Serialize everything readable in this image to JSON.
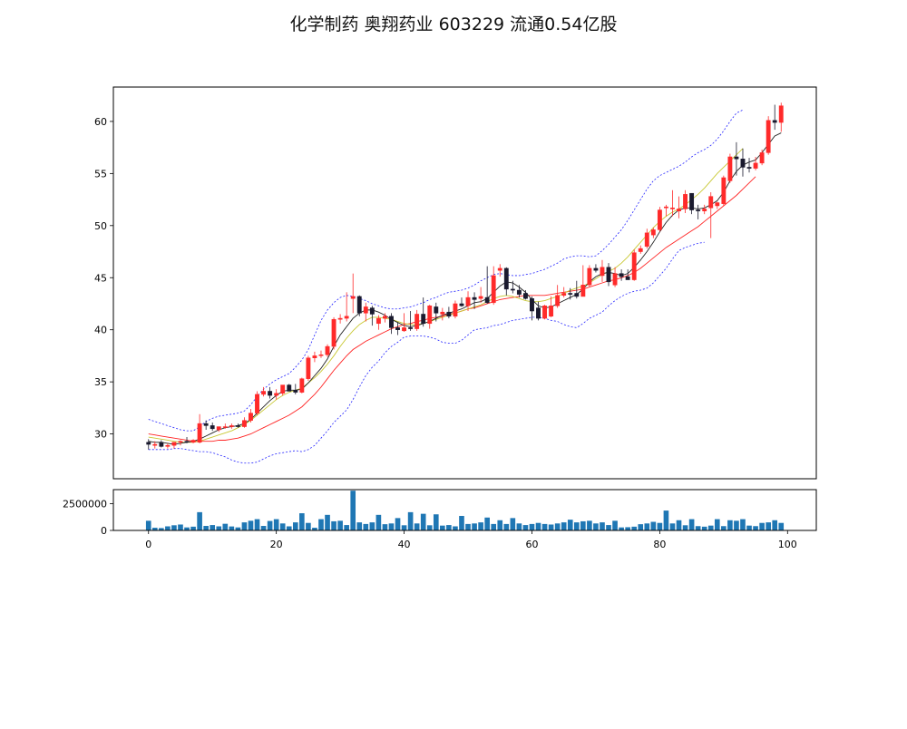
{
  "title": "化学制药 奥翔药业 603229 流通0.54亿股",
  "colors": {
    "up": "#ff2a2a",
    "down": "#1a1a2e",
    "ma_short": "#222222",
    "ma_mid": "#c8c832",
    "ma_long": "#ff2222",
    "bollinger": "#2323ff",
    "volume": "#1f77b4"
  },
  "chart_data": [
    {
      "type": "candlestick",
      "xlim": [
        -5.5,
        104.5
      ],
      "ylim": [
        25.7,
        63.3
      ],
      "yticks": [
        30,
        35,
        40,
        45,
        50,
        55,
        60
      ],
      "ytick_labels": [
        "30",
        "35",
        "40",
        "45",
        "50",
        "55",
        "60"
      ],
      "grid": false,
      "x": [
        0,
        1,
        2,
        3,
        4,
        5,
        6,
        7,
        8,
        9,
        10,
        11,
        12,
        13,
        14,
        15,
        16,
        17,
        18,
        19,
        20,
        21,
        22,
        23,
        24,
        25,
        26,
        27,
        28,
        29,
        30,
        31,
        32,
        33,
        34,
        35,
        36,
        37,
        38,
        39,
        40,
        41,
        42,
        43,
        44,
        45,
        46,
        47,
        48,
        49,
        50,
        51,
        52,
        53,
        54,
        55,
        56,
        57,
        58,
        59,
        60,
        61,
        62,
        63,
        64,
        65,
        66,
        67,
        68,
        69,
        70,
        71,
        72,
        73,
        74,
        75,
        76,
        77,
        78,
        79,
        80,
        81,
        82,
        83,
        84,
        85,
        86,
        87,
        88,
        89,
        90,
        91,
        92,
        93,
        94,
        95,
        96,
        97,
        98,
        99
      ],
      "open": [
        29.2,
        28.9,
        29.2,
        28.8,
        28.9,
        29.2,
        29.3,
        29.2,
        29.2,
        31.0,
        30.8,
        30.4,
        30.7,
        30.7,
        30.8,
        30.7,
        31.3,
        32.0,
        33.8,
        34.1,
        33.7,
        33.9,
        34.7,
        34.2,
        34.0,
        35.3,
        37.3,
        37.6,
        37.6,
        38.4,
        41.0,
        41.1,
        43.0,
        43.2,
        41.6,
        42.1,
        40.6,
        41.1,
        41.3,
        40.2,
        39.9,
        40.2,
        40.1,
        41.5,
        40.6,
        42.2,
        41.5,
        41.7,
        41.3,
        42.5,
        42.3,
        43.1,
        43.0,
        43.1,
        42.6,
        45.7,
        45.9,
        43.9,
        43.8,
        43.5,
        43.0,
        42.1,
        41.1,
        41.3,
        42.3,
        43.3,
        43.5,
        43.5,
        43.2,
        44.3,
        45.9,
        45.2,
        46.0,
        44.3,
        45.4,
        45.1,
        44.8,
        47.5,
        48.0,
        49.1,
        49.6,
        51.7,
        51.6,
        51.4,
        51.6,
        53.1,
        51.5,
        51.4,
        51.7,
        51.9,
        52.1,
        54.3,
        56.6,
        56.4,
        55.6,
        55.5,
        56.0,
        57.0,
        60.1,
        59.9
      ],
      "high": [
        29.5,
        29.3,
        29.4,
        29.1,
        29.2,
        29.4,
        29.7,
        29.5,
        31.9,
        31.3,
        31.1,
        30.7,
        31.0,
        31.0,
        31.0,
        31.6,
        32.4,
        34.1,
        34.5,
        34.5,
        34.3,
        34.5,
        34.8,
        34.8,
        35.4,
        37.5,
        37.9,
        38.0,
        38.6,
        41.2,
        41.5,
        43.6,
        45.4,
        43.3,
        42.6,
        42.3,
        41.4,
        41.6,
        41.6,
        40.7,
        41.6,
        41.8,
        41.9,
        43.1,
        42.4,
        42.6,
        42.1,
        42.2,
        42.8,
        43.1,
        43.7,
        43.6,
        44.1,
        46.1,
        46.1,
        46.3,
        46.0,
        44.7,
        44.3,
        43.8,
        43.2,
        42.7,
        42.4,
        43.2,
        44.3,
        44.1,
        44.0,
        44.7,
        46.2,
        46.2,
        46.3,
        46.7,
        46.4,
        46.0,
        45.8,
        45.8,
        47.7,
        48.1,
        49.7,
        49.8,
        51.8,
        52.0,
        53.4,
        52.8,
        53.4,
        53.1,
        52.0,
        52.0,
        53.2,
        52.3,
        54.8,
        56.9,
        58.0,
        57.4,
        56.5,
        56.6,
        57.3,
        60.5,
        61.6,
        61.8
      ],
      "low": [
        28.5,
        28.6,
        28.7,
        28.6,
        28.6,
        28.9,
        29.1,
        29.1,
        29.1,
        30.4,
        30.3,
        30.2,
        30.5,
        30.5,
        30.6,
        30.6,
        31.1,
        31.8,
        33.6,
        33.4,
        33.3,
        33.7,
        34.1,
        33.8,
        33.9,
        35.1,
        36.9,
        37.3,
        37.4,
        38.1,
        40.6,
        40.8,
        41.6,
        41.3,
        40.8,
        40.4,
        40.0,
        40.7,
        39.6,
        39.5,
        39.8,
        39.9,
        39.9,
        40.3,
        40.1,
        40.8,
        40.9,
        41.1,
        41.1,
        42.2,
        41.8,
        42.0,
        42.6,
        42.5,
        42.4,
        45.1,
        43.3,
        43.5,
        43.1,
        42.9,
        40.9,
        40.9,
        41.0,
        41.2,
        42.1,
        43.1,
        42.9,
        43.0,
        43.2,
        44.1,
        45.5,
        44.6,
        44.2,
        44.1,
        44.7,
        44.8,
        44.7,
        47.3,
        47.8,
        48.8,
        49.4,
        50.9,
        50.9,
        50.7,
        51.2,
        51.1,
        50.6,
        51.1,
        48.8,
        51.6,
        51.9,
        54.1,
        54.8,
        54.7,
        55.1,
        55.3,
        55.8,
        56.8,
        59.2,
        59.0
      ],
      "close": [
        29.0,
        29.0,
        28.8,
        28.9,
        29.2,
        29.3,
        29.2,
        29.4,
        31.0,
        30.8,
        30.5,
        30.7,
        30.7,
        30.8,
        30.7,
        31.3,
        32.0,
        33.8,
        34.1,
        33.7,
        33.9,
        34.7,
        34.1,
        34.0,
        35.3,
        37.3,
        37.5,
        37.6,
        38.4,
        41.0,
        41.1,
        41.3,
        43.2,
        41.6,
        42.2,
        41.5,
        41.1,
        41.3,
        40.2,
        40.0,
        40.2,
        40.1,
        41.5,
        40.6,
        42.3,
        41.6,
        41.7,
        41.3,
        42.5,
        42.3,
        43.1,
        42.9,
        43.2,
        42.6,
        45.2,
        45.9,
        43.9,
        43.8,
        43.4,
        43.0,
        41.8,
        41.1,
        42.3,
        42.3,
        43.3,
        43.5,
        43.4,
        43.2,
        44.3,
        45.9,
        45.7,
        46.0,
        44.6,
        45.4,
        45.1,
        44.8,
        47.4,
        47.8,
        49.3,
        49.6,
        51.5,
        51.8,
        51.7,
        51.6,
        53.0,
        51.5,
        51.4,
        51.6,
        52.8,
        52.2,
        54.6,
        56.6,
        56.4,
        55.6,
        55.5,
        56.0,
        57.0,
        60.1,
        59.9,
        61.5
      ],
      "ma_short": [
        29.3,
        29.2,
        29.2,
        29.1,
        29.0,
        29.1,
        29.2,
        29.3,
        29.5,
        29.8,
        30.1,
        30.4,
        30.6,
        30.7,
        30.8,
        31.0,
        31.4,
        32.0,
        32.6,
        33.2,
        33.7,
        34.1,
        34.2,
        34.2,
        34.3,
        34.9,
        35.6,
        36.3,
        37.2,
        38.4,
        39.5,
        40.3,
        41.1,
        41.6,
        41.9,
        41.9,
        41.7,
        41.4,
        41.0,
        40.7,
        40.4,
        40.3,
        40.4,
        40.6,
        40.8,
        41.1,
        41.4,
        41.6,
        41.8,
        42.0,
        42.3,
        42.6,
        42.7,
        43.0,
        43.6,
        44.2,
        44.6,
        44.5,
        44.1,
        43.6,
        42.9,
        42.3,
        42.1,
        42.2,
        42.5,
        42.8,
        43.1,
        43.4,
        43.9,
        44.6,
        45.1,
        45.4,
        45.5,
        45.4,
        45.2,
        45.4,
        46.0,
        46.7,
        47.5,
        48.4,
        49.4,
        50.3,
        51.0,
        51.5,
        51.7,
        51.7,
        51.6,
        51.7,
        52.0,
        52.4,
        53.2,
        54.3,
        55.2,
        55.8,
        56.1,
        56.3,
        57.0,
        57.8,
        58.6,
        58.9
      ],
      "ma_mid": [
        29.7,
        29.6,
        29.5,
        29.4,
        29.3,
        29.2,
        29.2,
        29.2,
        29.3,
        29.5,
        29.7,
        29.9,
        30.1,
        30.3,
        30.6,
        30.9,
        31.3,
        31.8,
        32.3,
        32.8,
        33.3,
        33.7,
        34.0,
        34.2,
        34.4,
        34.9,
        35.4,
        36.0,
        36.7,
        37.5,
        38.4,
        39.2,
        39.9,
        40.5,
        40.9,
        41.2,
        41.2,
        41.1,
        41.0,
        40.8,
        40.6,
        40.5,
        40.5,
        40.6,
        40.8,
        41.0,
        41.2,
        41.4,
        41.6,
        41.8,
        42.0,
        42.2,
        42.4,
        42.7,
        43.0,
        43.2,
        43.3,
        43.2,
        43.0,
        42.8,
        42.7,
        42.7,
        42.8,
        43.0,
        43.2,
        43.5,
        43.8,
        44.0,
        44.2,
        44.5,
        44.9,
        45.3,
        45.6,
        45.9,
        46.4,
        47.0,
        47.7,
        48.4,
        49.1,
        49.8,
        50.4,
        50.9,
        51.3,
        51.6,
        52.0,
        52.5,
        53.0,
        53.6,
        54.3,
        55.0,
        55.6,
        56.2,
        56.8,
        57.4
      ],
      "ma_long": [
        30.0,
        29.9,
        29.8,
        29.7,
        29.6,
        29.5,
        29.4,
        29.3,
        29.3,
        29.3,
        29.3,
        29.4,
        29.4,
        29.5,
        29.6,
        29.8,
        30.0,
        30.3,
        30.6,
        30.9,
        31.2,
        31.5,
        31.8,
        32.2,
        32.6,
        33.2,
        33.8,
        34.5,
        35.3,
        36.1,
        36.8,
        37.5,
        38.1,
        38.5,
        38.9,
        39.2,
        39.5,
        39.8,
        40.1,
        40.3,
        40.5,
        40.6,
        40.8,
        40.9,
        41.1,
        41.2,
        41.3,
        41.5,
        41.6,
        41.8,
        42.0,
        42.1,
        42.3,
        42.5,
        42.7,
        42.9,
        43.0,
        43.1,
        43.2,
        43.3,
        43.3,
        43.3,
        43.3,
        43.4,
        43.5,
        43.6,
        43.7,
        43.8,
        43.9,
        44.1,
        44.3,
        44.5,
        44.7,
        44.8,
        45.0,
        45.2,
        45.5,
        45.9,
        46.4,
        46.9,
        47.4,
        47.9,
        48.3,
        48.7,
        49.1,
        49.5,
        49.9,
        50.4,
        50.9,
        51.4,
        51.9,
        52.4,
        52.9,
        53.5,
        54.1,
        54.7
      ],
      "boll_upper": [
        31.4,
        31.2,
        31.0,
        30.8,
        30.6,
        30.4,
        30.3,
        30.3,
        30.7,
        31.2,
        31.5,
        31.7,
        31.8,
        31.9,
        32.0,
        32.2,
        32.8,
        33.6,
        34.3,
        34.8,
        35.2,
        35.5,
        35.8,
        36.4,
        37.1,
        38.1,
        39.5,
        40.9,
        41.9,
        42.6,
        43.1,
        43.3,
        43.2,
        43.0,
        42.8,
        42.5,
        42.3,
        42.1,
        42.0,
        42.0,
        42.1,
        42.2,
        42.4,
        42.6,
        42.9,
        43.1,
        43.4,
        43.6,
        43.7,
        43.8,
        44.0,
        44.3,
        44.7,
        45.0,
        45.3,
        45.4,
        45.3,
        45.2,
        45.2,
        45.3,
        45.4,
        45.6,
        45.8,
        46.1,
        46.4,
        46.8,
        47.0,
        47.1,
        47.1,
        47.0,
        47.1,
        47.6,
        48.2,
        48.9,
        49.6,
        50.5,
        51.5,
        52.5,
        53.5,
        54.3,
        54.8,
        55.1,
        55.4,
        55.7,
        56.1,
        56.6,
        57.0,
        57.3,
        57.7,
        58.3,
        59.1,
        60.0,
        60.8,
        61.1
      ],
      "boll_lower": [
        28.5,
        28.5,
        28.5,
        28.5,
        28.6,
        28.6,
        28.5,
        28.4,
        28.3,
        28.3,
        28.2,
        28.0,
        27.8,
        27.5,
        27.3,
        27.2,
        27.2,
        27.3,
        27.6,
        27.9,
        28.1,
        28.2,
        28.3,
        28.4,
        28.3,
        28.5,
        28.9,
        29.6,
        30.3,
        31.1,
        31.7,
        32.3,
        33.3,
        34.5,
        35.6,
        36.4,
        37.0,
        37.8,
        38.4,
        38.8,
        39.3,
        39.4,
        39.4,
        39.4,
        39.3,
        39.1,
        38.8,
        38.7,
        38.7,
        39.0,
        39.5,
        40.0,
        40.1,
        40.2,
        40.4,
        40.5,
        40.7,
        40.9,
        41.0,
        41.1,
        41.2,
        41.2,
        41.1,
        40.9,
        40.8,
        40.5,
        40.3,
        40.2,
        40.6,
        41.1,
        41.4,
        41.7,
        42.3,
        42.8,
        43.2,
        43.5,
        43.7,
        43.8,
        44.0,
        44.5,
        45.2,
        45.9,
        46.8,
        47.6,
        47.9,
        48.1,
        48.3,
        48.4
      ]
    },
    {
      "type": "bar",
      "xlim": [
        -5.5,
        104.5
      ],
      "ylim": [
        0,
        3800000
      ],
      "yticks": [
        0,
        2500000
      ],
      "ytick_labels": [
        "0",
        "2500000"
      ],
      "xticks": [
        0,
        20,
        40,
        60,
        80,
        100
      ],
      "xtick_labels": [
        "0",
        "20",
        "40",
        "60",
        "80",
        "100"
      ],
      "x": [
        0,
        1,
        2,
        3,
        4,
        5,
        6,
        7,
        8,
        9,
        10,
        11,
        12,
        13,
        14,
        15,
        16,
        17,
        18,
        19,
        20,
        21,
        22,
        23,
        24,
        25,
        26,
        27,
        28,
        29,
        30,
        31,
        32,
        33,
        34,
        35,
        36,
        37,
        38,
        39,
        40,
        41,
        42,
        43,
        44,
        45,
        46,
        47,
        48,
        49,
        50,
        51,
        52,
        53,
        54,
        55,
        56,
        57,
        58,
        59,
        60,
        61,
        62,
        63,
        64,
        65,
        66,
        67,
        68,
        69,
        70,
        71,
        72,
        73,
        74,
        75,
        76,
        77,
        78,
        79,
        80,
        81,
        82,
        83,
        84,
        85,
        86,
        87,
        88,
        89,
        90,
        91,
        92,
        93,
        94,
        95,
        96,
        97,
        98,
        99
      ],
      "values": [
        900000,
        250000,
        220000,
        380000,
        480000,
        550000,
        280000,
        350000,
        1700000,
        420000,
        500000,
        380000,
        620000,
        370000,
        280000,
        750000,
        900000,
        1050000,
        420000,
        880000,
        1050000,
        650000,
        380000,
        750000,
        1600000,
        700000,
        250000,
        1050000,
        1450000,
        850000,
        900000,
        500000,
        3700000,
        750000,
        600000,
        750000,
        1450000,
        580000,
        650000,
        1150000,
        480000,
        1700000,
        650000,
        1550000,
        480000,
        1500000,
        450000,
        500000,
        380000,
        1350000,
        600000,
        650000,
        750000,
        1200000,
        600000,
        950000,
        600000,
        1150000,
        650000,
        500000,
        600000,
        700000,
        600000,
        550000,
        650000,
        750000,
        1000000,
        750000,
        850000,
        900000,
        650000,
        750000,
        500000,
        900000,
        280000,
        300000,
        350000,
        580000,
        650000,
        800000,
        700000,
        1850000,
        650000,
        950000,
        480000,
        1050000,
        400000,
        350000,
        450000,
        1050000,
        400000,
        950000,
        900000,
        1050000,
        450000,
        400000,
        700000,
        750000,
        950000,
        700000
      ]
    }
  ]
}
